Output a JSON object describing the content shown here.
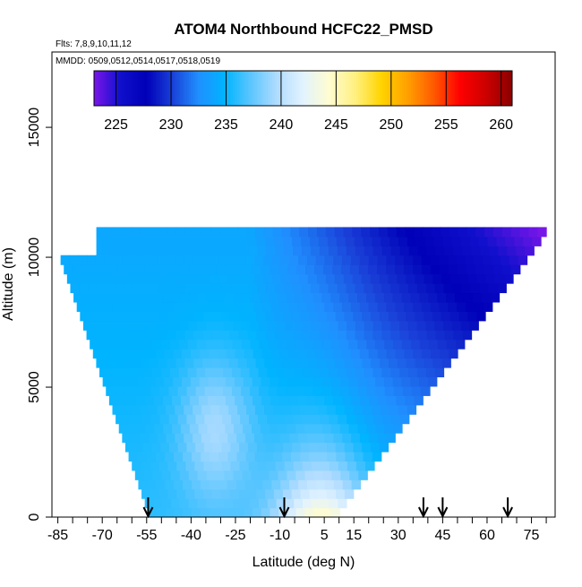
{
  "chart_data": {
    "type": "heatmap",
    "title": "ATOM4 Northbound HCFC22_PMSD",
    "flights_label": "Flts: 7,8,9,10,11,12",
    "dates_label": "MMDD: 0509,0512,0514,0517,0518,0519",
    "xlabel": "Latitude (deg N)",
    "ylabel": "Altitude (m)",
    "xlim": [
      -87,
      83
    ],
    "ylim": [
      0,
      17900
    ],
    "x_ticks": [
      -85,
      -70,
      -55,
      -40,
      -25,
      -10,
      5,
      15,
      30,
      45,
      60,
      75
    ],
    "x_minor_ticks": [
      -80,
      -75,
      -65,
      -60,
      -50,
      -45,
      -35,
      -30,
      -20,
      -15,
      -5,
      0,
      10,
      20,
      25,
      35,
      40,
      50,
      55,
      65,
      70,
      80
    ],
    "y_ticks": [
      0,
      5000,
      10000,
      15000
    ],
    "colorbar": {
      "min": 223,
      "max": 261,
      "ticks": [
        225,
        230,
        235,
        240,
        245,
        250,
        255,
        260
      ]
    },
    "colors": {
      "scale": [
        "#7b16ea",
        "#1010cc",
        "#0000b8",
        "#1a40d8",
        "#2090ff",
        "#00b4ff",
        "#5cc6ff",
        "#b0dcff",
        "#e2f3ff",
        "#fffcd0",
        "#fff080",
        "#ffd400",
        "#ffa000",
        "#ff5a00",
        "#ff0000",
        "#cc0000",
        "#8b0000"
      ],
      "arrow": "#000000"
    },
    "domain": {
      "top_altitude": 10900,
      "top_left_lat": -72,
      "top_right_lat": 80,
      "side_altitude": 10200,
      "side_left_lat": -85,
      "bottom_left_lat": -54,
      "bottom_right_lat": 9
    },
    "field": {
      "north_tropopause_value": 223,
      "south_lowaltitude_value": 236,
      "south_highaltitude_value": 234,
      "tropical_surface_value": 245
    },
    "site_markers_lat": [
      -54.5,
      -8.5,
      38.5,
      45,
      67
    ]
  }
}
